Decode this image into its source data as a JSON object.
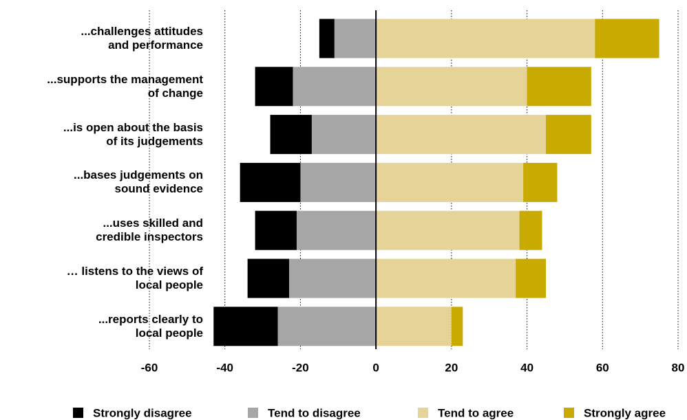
{
  "chart_data": {
    "type": "diverging-bar",
    "categories": [
      "...challenges attitudes\nand performance",
      "...supports the management\nof change",
      "...is open about the basis\nof its judgements",
      "...bases judgements on\nsound evidence",
      "...uses skilled and\ncredible inspectors",
      "… listens to the views of\nlocal people",
      "...reports clearly to\nlocal people"
    ],
    "series": [
      {
        "name": "Strongly disagree",
        "color": "#000000",
        "values": [
          -4,
          -10,
          -11,
          -16,
          -11,
          -11,
          -17
        ]
      },
      {
        "name": "Tend to disagree",
        "color": "#a6a6a6",
        "values": [
          -11,
          -22,
          -17,
          -20,
          -21,
          -23,
          -26
        ]
      },
      {
        "name": "Tend to agree",
        "color": "#e6d397",
        "values": [
          58,
          40,
          45,
          39,
          38,
          37,
          20
        ]
      },
      {
        "name": "Strongly agree",
        "color": "#c8aa00",
        "values": [
          17,
          17,
          12,
          9,
          6,
          8,
          3
        ]
      }
    ],
    "xlim": [
      -60,
      80
    ],
    "xticks": [
      -60,
      -40,
      -20,
      0,
      20,
      40,
      60,
      80
    ],
    "grid": true
  }
}
